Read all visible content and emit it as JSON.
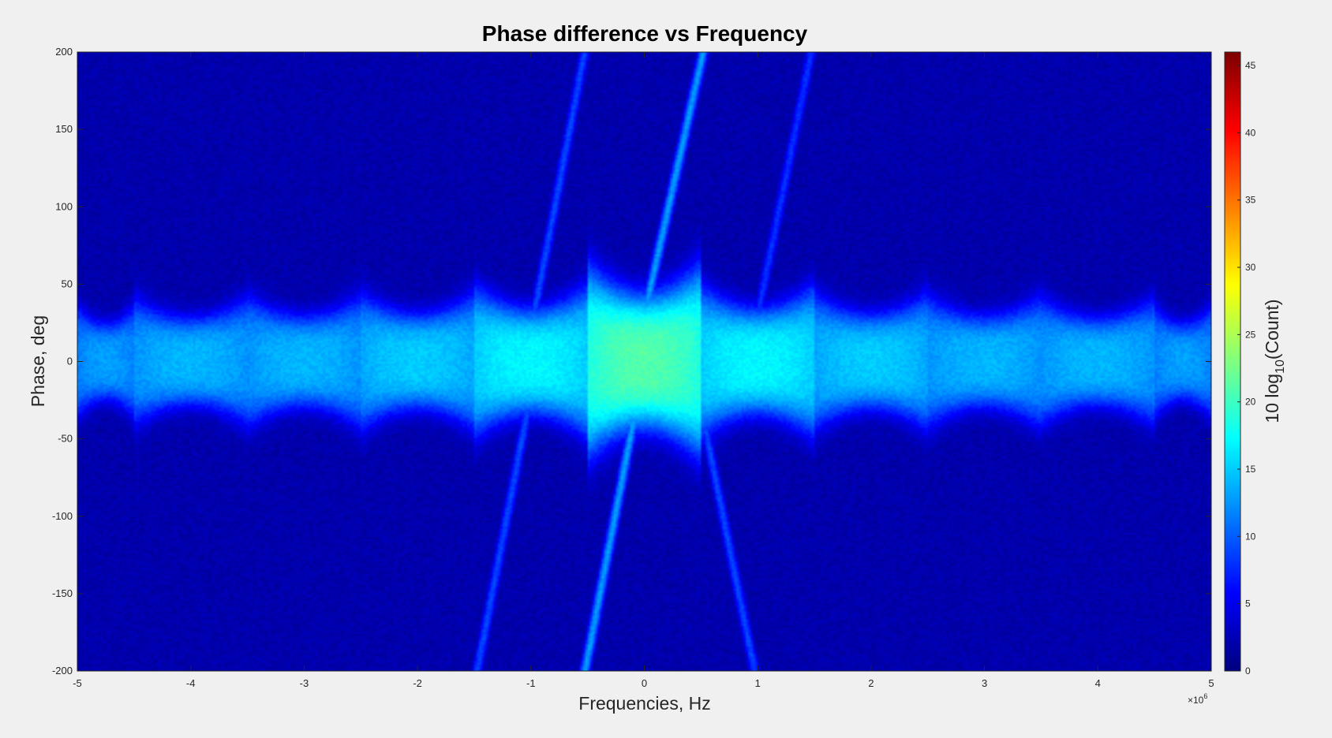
{
  "chart_data": {
    "type": "heatmap",
    "title": "Phase difference vs Frequency",
    "xlabel": "Frequencies, Hz",
    "ylabel": "Phase, deg",
    "x_exponent_base": "×10",
    "x_exponent_power": "6",
    "xlim": [
      -5000000,
      5000000
    ],
    "ylim": [
      -200,
      200
    ],
    "x_tick_values": [
      -5,
      -4,
      -3,
      -2,
      -1,
      0,
      1,
      2,
      3,
      4,
      5
    ],
    "x_tick_labels": [
      "-5",
      "-4",
      "-3",
      "-2",
      "-1",
      "0",
      "1",
      "2",
      "3",
      "4",
      "5"
    ],
    "y_tick_values": [
      -200,
      -150,
      -100,
      -50,
      0,
      50,
      100,
      150,
      200
    ],
    "y_tick_labels": [
      "-200",
      "-150",
      "-100",
      "-50",
      "0",
      "50",
      "100",
      "150",
      "200"
    ],
    "colormap": "jet",
    "colorbar": {
      "label_prefix": "10 log",
      "label_sub": "10",
      "label_suffix": "(Count)",
      "range": [
        0,
        46
      ],
      "tick_values": [
        0,
        5,
        10,
        15,
        20,
        25,
        30,
        35,
        40,
        45
      ],
      "tick_labels": [
        "0",
        "5",
        "10",
        "15",
        "20",
        "25",
        "30",
        "35",
        "40",
        "45"
      ]
    },
    "background_level_db": 2,
    "central_band": {
      "center_phase_deg": 0,
      "segments_mhz": [
        {
          "from": -5.0,
          "to": -4.5,
          "peak_db": 13,
          "half_width_deg": 22
        },
        {
          "from": -4.5,
          "to": -3.5,
          "peak_db": 14,
          "half_width_deg": 25
        },
        {
          "from": -3.5,
          "to": -2.5,
          "peak_db": 14,
          "half_width_deg": 26
        },
        {
          "from": -2.5,
          "to": -1.5,
          "peak_db": 15,
          "half_width_deg": 27
        },
        {
          "from": -1.5,
          "to": -0.5,
          "peak_db": 17,
          "half_width_deg": 30
        },
        {
          "from": -0.5,
          "to": 0.5,
          "peak_db": 21,
          "half_width_deg": 38
        },
        {
          "from": 0.5,
          "to": 1.5,
          "peak_db": 17,
          "half_width_deg": 30
        },
        {
          "from": 1.5,
          "to": 2.5,
          "peak_db": 15,
          "half_width_deg": 27
        },
        {
          "from": 2.5,
          "to": 3.5,
          "peak_db": 14,
          "half_width_deg": 26
        },
        {
          "from": 3.5,
          "to": 4.5,
          "peak_db": 14,
          "half_width_deg": 25
        },
        {
          "from": 4.5,
          "to": 5.0,
          "peak_db": 13,
          "half_width_deg": 22
        }
      ]
    },
    "diagonal_streaks": [
      {
        "from": [
          0.0,
          30
        ],
        "to": [
          0.55,
          210
        ],
        "peak_db": 13
      },
      {
        "from": [
          -0.1,
          -40
        ],
        "to": [
          -0.55,
          -210
        ],
        "peak_db": 13
      },
      {
        "from": [
          -1.0,
          20
        ],
        "to": [
          -0.5,
          210
        ],
        "peak_db": 9
      },
      {
        "from": [
          0.5,
          -30
        ],
        "to": [
          1.0,
          -210
        ],
        "peak_db": 9
      },
      {
        "from": [
          -1.0,
          -20
        ],
        "to": [
          -1.5,
          -210
        ],
        "peak_db": 9
      },
      {
        "from": [
          1.0,
          30
        ],
        "to": [
          1.5,
          210
        ],
        "peak_db": 8
      }
    ]
  }
}
